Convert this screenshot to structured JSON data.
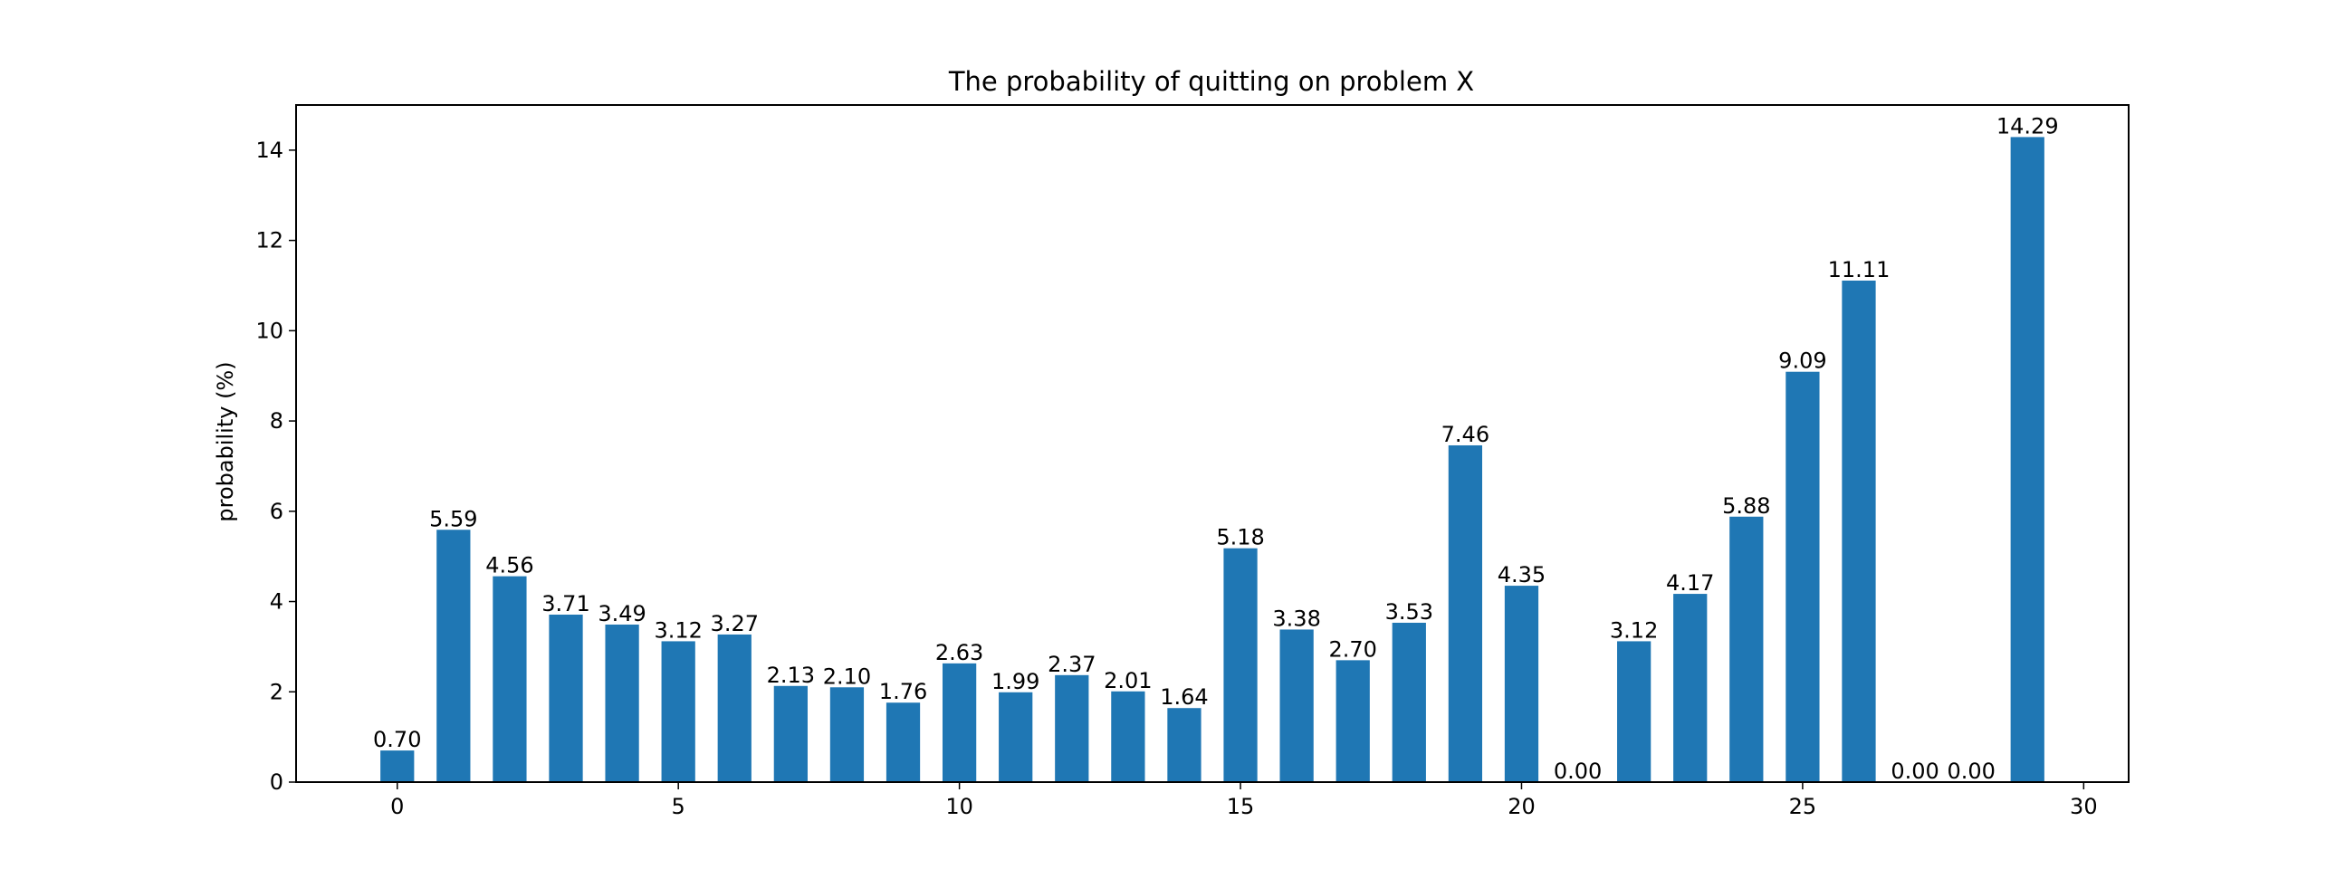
{
  "chart_data": {
    "type": "bar",
    "title": "The probability of quitting on problem X",
    "xlabel": "",
    "ylabel": "probability (%)",
    "x": [
      0,
      1,
      2,
      3,
      4,
      5,
      6,
      7,
      8,
      9,
      10,
      11,
      12,
      13,
      14,
      15,
      16,
      17,
      18,
      19,
      20,
      21,
      22,
      23,
      24,
      25,
      26,
      27,
      28,
      29
    ],
    "values": [
      0.7,
      5.59,
      4.56,
      3.71,
      3.49,
      3.12,
      3.27,
      2.13,
      2.1,
      1.76,
      2.63,
      1.99,
      2.37,
      2.01,
      1.64,
      5.18,
      3.38,
      2.7,
      3.53,
      7.46,
      4.35,
      0.0,
      3.12,
      4.17,
      5.88,
      9.09,
      11.11,
      0.0,
      0.0,
      14.29
    ],
    "data_labels": [
      "0.70",
      "5.59",
      "4.56",
      "3.71",
      "3.49",
      "3.12",
      "3.27",
      "2.13",
      "2.10",
      "1.76",
      "2.63",
      "1.99",
      "2.37",
      "2.01",
      "1.64",
      "5.18",
      "3.38",
      "2.70",
      "3.53",
      "7.46",
      "4.35",
      "0.00",
      "3.12",
      "4.17",
      "5.88",
      "9.09",
      "11.11",
      "0.00",
      "0.00",
      "14.29"
    ],
    "xlim": [
      -1.8,
      30.8
    ],
    "ylim": [
      0,
      15
    ],
    "xticks": [
      0,
      5,
      10,
      15,
      20,
      25,
      30
    ],
    "xtick_labels": [
      "0",
      "5",
      "10",
      "15",
      "20",
      "25",
      "30"
    ],
    "yticks": [
      0,
      2,
      4,
      6,
      8,
      10,
      12,
      14
    ],
    "ytick_labels": [
      "0",
      "2",
      "4",
      "6",
      "8",
      "10",
      "12",
      "14"
    ],
    "bar_color": "#1f77b4",
    "grid": false,
    "legend": "none"
  }
}
